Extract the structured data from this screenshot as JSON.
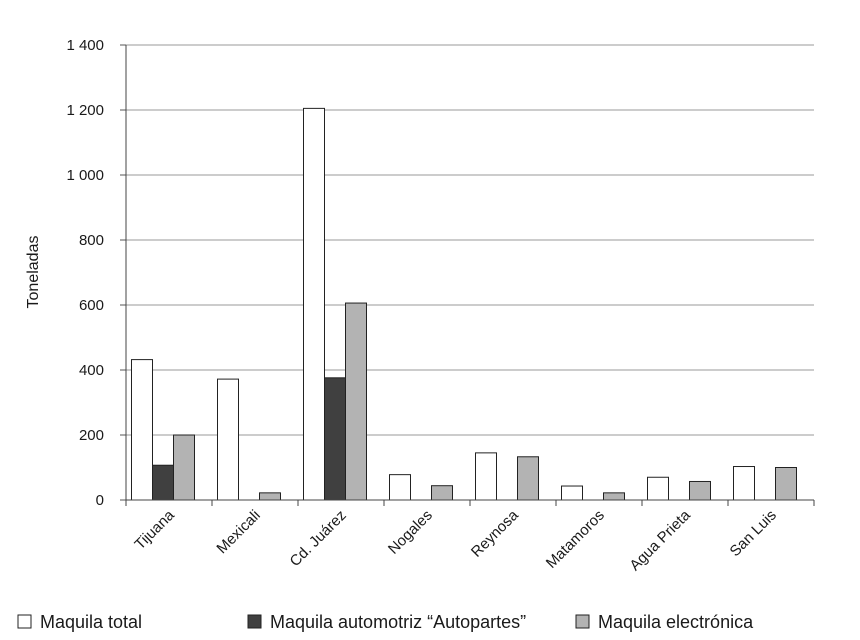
{
  "chart_data": {
    "type": "bar",
    "title": "",
    "xlabel": "",
    "ylabel": "Toneladas",
    "ylim": [
      0,
      1400
    ],
    "yticks": [
      0,
      200,
      400,
      600,
      800,
      1000,
      1200,
      1400
    ],
    "ytick_labels": [
      "0",
      "200",
      "400",
      "600",
      "800",
      "1 000",
      "1 200",
      "1 400"
    ],
    "grid": true,
    "legend_position": "bottom",
    "categories": [
      "Tijuana",
      "Mexicali",
      "Cd. Juárez",
      "Nogales",
      "Reynosa",
      "Matamoros",
      "Agua Prieta",
      "San Luis"
    ],
    "series": [
      {
        "name": "Maquila total",
        "color": "#ffffff",
        "values": [
          432,
          372,
          1205,
          78,
          145,
          43,
          70,
          103
        ]
      },
      {
        "name": "Maquila automotriz “Autopartes”",
        "color": "#404040",
        "values": [
          107,
          0,
          376,
          0,
          0,
          0,
          0,
          0
        ]
      },
      {
        "name": "Maquila electrónica",
        "color": "#b3b3b3",
        "values": [
          200,
          22,
          606,
          44,
          133,
          22,
          57,
          100
        ]
      }
    ]
  }
}
